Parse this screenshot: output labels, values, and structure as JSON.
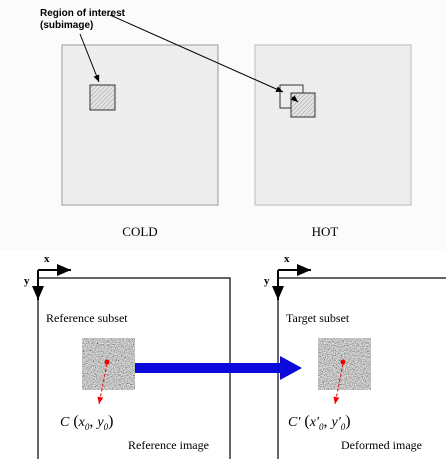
{
  "top": {
    "callout": [
      "Region of interest",
      "(subimage)"
    ],
    "left_label": "COLD",
    "right_label": "HOT"
  },
  "bottom": {
    "left": {
      "axis_x": "x",
      "axis_y": "y",
      "subset_label": "Reference subset",
      "point": {
        "name": "C",
        "open": "(",
        "x": "x",
        "x_sub": "0",
        "sep": ",",
        "y": "y",
        "y_sub": "0",
        "close": ")"
      },
      "image_label": "Reference image"
    },
    "right": {
      "axis_x": "x",
      "axis_y": "y",
      "subset_label": "Target subset",
      "point": {
        "name": "C′",
        "open": "(",
        "x": "x′",
        "x_sub": "0",
        "sep": ",",
        "y": "y′",
        "y_sub": "0",
        "close": ")"
      },
      "image_label": "Deformed image"
    }
  }
}
